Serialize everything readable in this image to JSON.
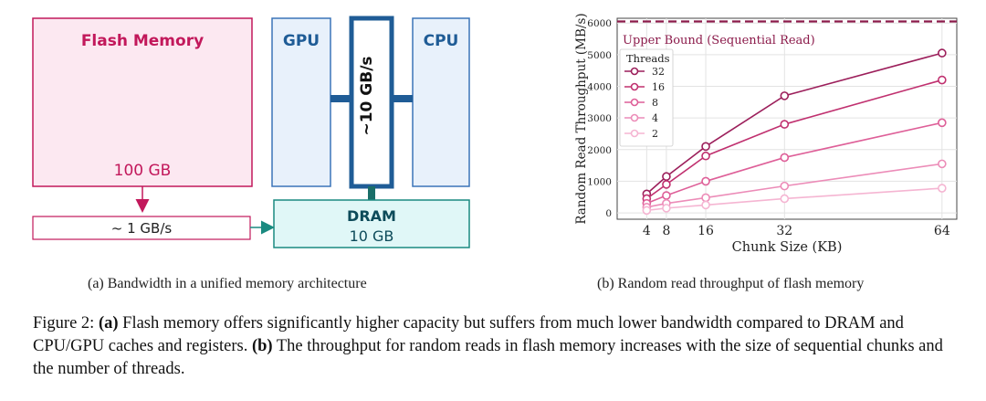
{
  "diagram": {
    "flash": {
      "title": "Flash Memory",
      "capacity": "100 GB",
      "bandwidth": "~ 1 GB/s"
    },
    "gpu": {
      "label": "GPU"
    },
    "cpu": {
      "label": "CPU"
    },
    "bus": {
      "label": "~10 GB/s"
    },
    "dram": {
      "title": "DRAM",
      "capacity": "10 GB"
    }
  },
  "subcaptions": {
    "a": "(a) Bandwidth in a unified memory architecture",
    "b": "(b) Random read throughput of flash memory"
  },
  "caption": {
    "prefix": "Figure 2: ",
    "a_label": "(a)",
    "a_text": " Flash memory offers significantly higher capacity but suffers from much lower bandwidth compared to DRAM and CPU/GPU caches and registers. ",
    "b_label": "(b)",
    "b_text": " The throughput for random reads in flash memory increases with the size of sequential chunks and the number of threads."
  },
  "chart_data": {
    "type": "line",
    "xlabel": "Chunk Size (KB)",
    "ylabel": "Random Read Throughput (MB/s)",
    "x": [
      4,
      8,
      16,
      32,
      64
    ],
    "xticks": [
      4,
      8,
      16,
      32,
      64
    ],
    "yticks": [
      0,
      1000,
      2000,
      3000,
      4000,
      5000,
      6000
    ],
    "xlim": [
      -2,
      67
    ],
    "ylim": [
      -200,
      6150
    ],
    "grid": true,
    "upper_bound": {
      "value": 6050,
      "label": "Upper Bound (Sequential Read)",
      "color": "#8b1a4a"
    },
    "legend": {
      "title": "Threads",
      "placement": "upper-left"
    },
    "series": [
      {
        "name": "32",
        "color": "#9c1f5b",
        "values": [
          600,
          1150,
          2100,
          3700,
          5050
        ]
      },
      {
        "name": "16",
        "color": "#c0306f",
        "values": [
          450,
          900,
          1800,
          2800,
          4200
        ]
      },
      {
        "name": "8",
        "color": "#de5f98",
        "values": [
          300,
          550,
          1000,
          1750,
          2850
        ]
      },
      {
        "name": "4",
        "color": "#ec8cb8",
        "values": [
          180,
          300,
          480,
          850,
          1550
        ]
      },
      {
        "name": "2",
        "color": "#f5b5d2",
        "values": [
          80,
          150,
          250,
          450,
          780
        ]
      }
    ]
  },
  "colors": {
    "flash_fill": "#fce8f1",
    "flash_stroke": "#c2185b",
    "cpu_fill": "#e8f1fb",
    "cpu_stroke": "#3a74b8",
    "bus_stroke": "#1f5c96",
    "bus_fill": "#ffffff",
    "dram_fill": "#e0f7f7",
    "dram_stroke": "#1a8a80"
  }
}
